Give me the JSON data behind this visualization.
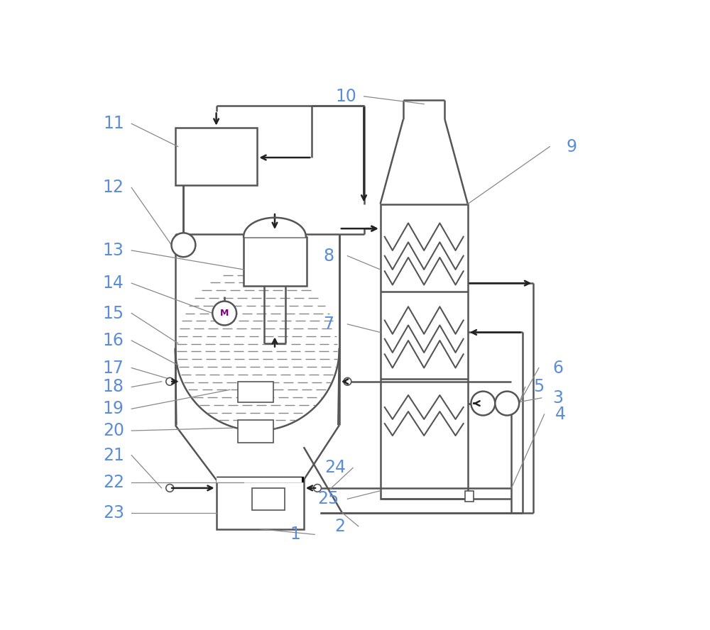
{
  "bg_color": "#ffffff",
  "line_color": "#555555",
  "label_color": "#5b8dd9",
  "arrow_color": "#222222",
  "figure_size": [
    10.0,
    8.88
  ],
  "dpi": 100
}
